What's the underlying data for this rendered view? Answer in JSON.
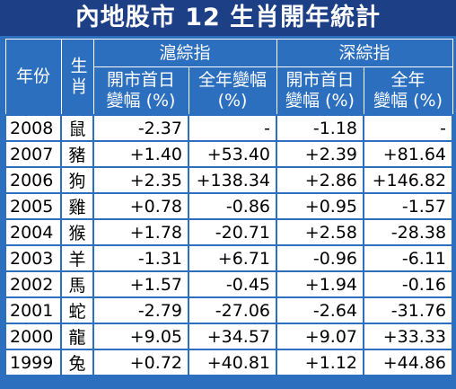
{
  "title": "內地股市 12 生肖開年統計",
  "header": {
    "year": "年份",
    "zodiac": "生肖",
    "groups": [
      {
        "name": "滬綜指",
        "columns": [
          [
            "開市首日",
            "變幅 (%)"
          ],
          [
            "全年變幅",
            "(%)"
          ]
        ]
      },
      {
        "name": "深綜指",
        "columns": [
          [
            "開市首日",
            "變幅 (%)"
          ],
          [
            "全年",
            "變幅 (%)"
          ]
        ]
      }
    ]
  },
  "rows": [
    [
      "2008",
      "鼠",
      "-2.37",
      "-",
      "-1.18",
      "-"
    ],
    [
      "2007",
      "豬",
      "+1.40",
      "+53.40",
      "+2.39",
      "+81.64"
    ],
    [
      "2006",
      "狗",
      "+2.35",
      "+138.34",
      "+2.86",
      "+146.82"
    ],
    [
      "2005",
      "雞",
      "+0.78",
      "-0.86",
      "+0.95",
      "-1.57"
    ],
    [
      "2004",
      "猴",
      "+1.78",
      "-20.71",
      "+2.58",
      "-28.38"
    ],
    [
      "2003",
      "羊",
      "-1.31",
      "+6.71",
      "-0.96",
      "-6.11"
    ],
    [
      "2002",
      "馬",
      "+1.57",
      "-0.45",
      "+1.94",
      "-0.16"
    ],
    [
      "2001",
      "蛇",
      "-2.79",
      "-27.06",
      "-2.64",
      "-31.76"
    ],
    [
      "2000",
      "龍",
      "+9.05",
      "+34.57",
      "+9.07",
      "+33.33"
    ],
    [
      "1999",
      "兔",
      "+0.72",
      "+40.81",
      "+1.12",
      "+44.86"
    ]
  ]
}
